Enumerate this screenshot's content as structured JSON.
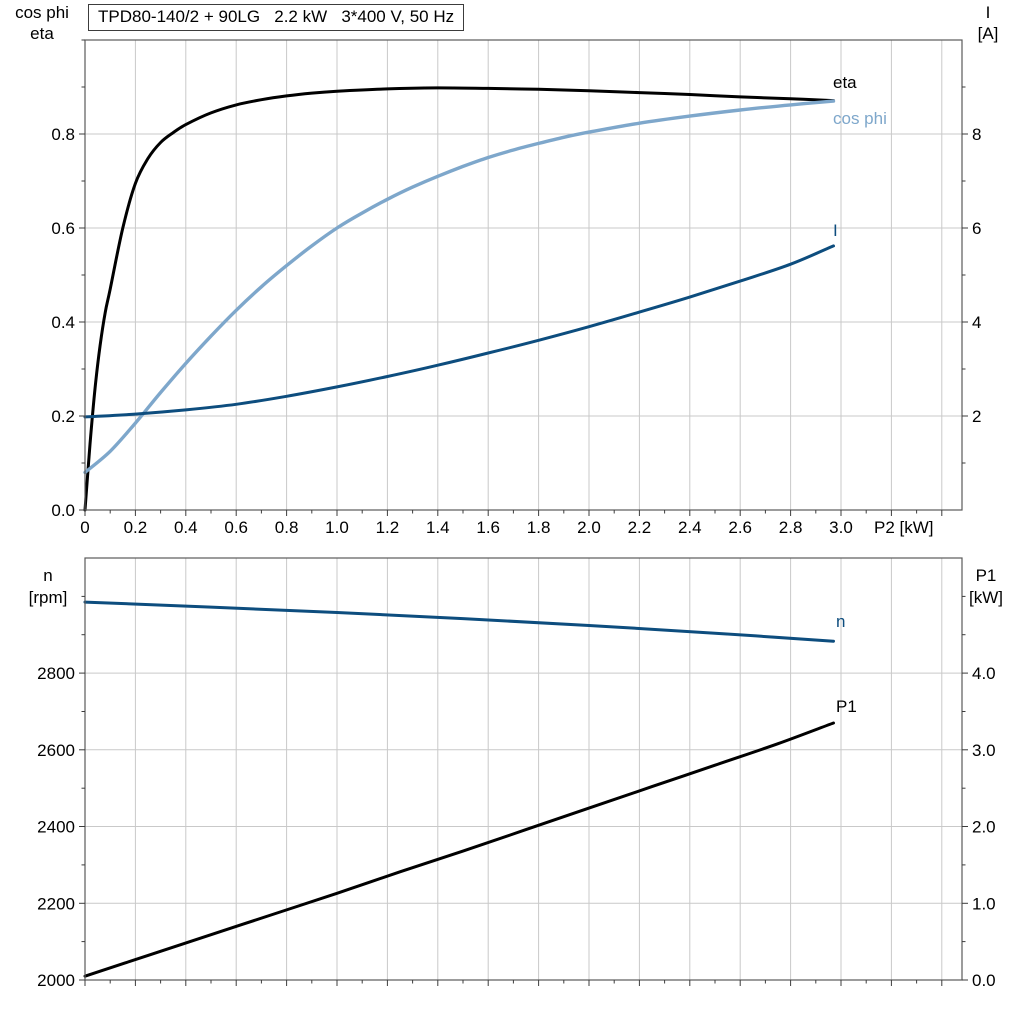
{
  "title_box": {
    "text": "TPD80-140/2 + 90LG   2.2 kW   3*400 V, 50 Hz"
  },
  "axis_captions": {
    "top_left_1": "cos phi",
    "top_left_2": "eta",
    "top_right_1": "I",
    "top_right_2": "[A]",
    "x_label": "P2 [kW]",
    "bottom_left_1": "n",
    "bottom_left_2": "[rpm]",
    "bottom_right_1": "P1",
    "bottom_right_2": "[kW]"
  },
  "colors": {
    "black": "#000000",
    "light_blue": "#7ea7cb",
    "dark_blue": "#0d4d7e",
    "grid": "#c9c9c9",
    "frame": "#5a5a5a",
    "tick": "#3c3c3c",
    "text": "#000000"
  },
  "chart_data": [
    {
      "type": "line",
      "panel": "top",
      "title": "TPD80-140/2 + 90LG   2.2 kW   3*400 V, 50 Hz",
      "xlabel": "P2 [kW]",
      "ylabel_left": "cos phi / eta",
      "ylabel_right": "I [A]",
      "grid": true,
      "xlim": [
        0,
        3.48
      ],
      "ylim_left": [
        0,
        1.0
      ],
      "ylim_right": [
        0,
        10
      ],
      "x_tick_values": [
        0,
        0.2,
        0.4,
        0.6,
        0.8,
        1.0,
        1.2,
        1.4,
        1.6,
        1.8,
        2.0,
        2.2,
        2.4,
        2.6,
        2.8,
        3.0
      ],
      "x_tick_labels": [
        "0",
        "0.2",
        "0.4",
        "0.6",
        "0.8",
        "1.0",
        "1.2",
        "1.4",
        "1.6",
        "1.8",
        "2.0",
        "2.2",
        "2.4",
        "2.6",
        "2.8",
        "3.0"
      ],
      "x_grid_values": [
        0.2,
        0.4,
        0.6,
        0.8,
        1.0,
        1.2,
        1.4,
        1.6,
        1.8,
        2.0,
        2.2,
        2.4,
        2.6,
        2.8,
        3.0,
        3.2,
        3.4
      ],
      "y_left_tick_values": [
        0,
        0.2,
        0.4,
        0.6,
        0.8
      ],
      "y_left_tick_labels": [
        "0.0",
        "0.2",
        "0.4",
        "0.6",
        "0.8"
      ],
      "y_right_tick_values": [
        2,
        4,
        6,
        8
      ],
      "y_right_tick_labels": [
        "2",
        "4",
        "6",
        "8"
      ],
      "y_grid_values": [
        0.2,
        0.4,
        0.6,
        0.8
      ],
      "minor_steps": {
        "x": 0.1,
        "left": 0.1,
        "right": 1
      },
      "series": [
        {
          "name": "eta",
          "axis": "left",
          "color_key": "black",
          "width": 3,
          "points": [
            [
              0,
              0
            ],
            [
              0.02,
              0.14
            ],
            [
              0.04,
              0.26
            ],
            [
              0.06,
              0.35
            ],
            [
              0.08,
              0.42
            ],
            [
              0.1,
              0.47
            ],
            [
              0.15,
              0.6
            ],
            [
              0.2,
              0.695
            ],
            [
              0.25,
              0.748
            ],
            [
              0.3,
              0.782
            ],
            [
              0.35,
              0.803
            ],
            [
              0.4,
              0.82
            ],
            [
              0.5,
              0.845
            ],
            [
              0.6,
              0.862
            ],
            [
              0.7,
              0.873
            ],
            [
              0.8,
              0.881
            ],
            [
              0.9,
              0.887
            ],
            [
              1.0,
              0.891
            ],
            [
              1.2,
              0.896
            ],
            [
              1.4,
              0.898
            ],
            [
              1.6,
              0.897
            ],
            [
              1.8,
              0.895
            ],
            [
              2.0,
              0.892
            ],
            [
              2.2,
              0.888
            ],
            [
              2.4,
              0.884
            ],
            [
              2.6,
              0.879
            ],
            [
              2.8,
              0.875
            ],
            [
              2.97,
              0.871
            ]
          ]
        },
        {
          "name": "cos phi",
          "axis": "left",
          "color_key": "light_blue",
          "width": 3.4,
          "points": [
            [
              0,
              0.08
            ],
            [
              0.1,
              0.125
            ],
            [
              0.2,
              0.185
            ],
            [
              0.3,
              0.25
            ],
            [
              0.4,
              0.312
            ],
            [
              0.5,
              0.37
            ],
            [
              0.6,
              0.425
            ],
            [
              0.7,
              0.475
            ],
            [
              0.8,
              0.52
            ],
            [
              0.9,
              0.562
            ],
            [
              1.0,
              0.6
            ],
            [
              1.1,
              0.632
            ],
            [
              1.2,
              0.661
            ],
            [
              1.3,
              0.687
            ],
            [
              1.4,
              0.71
            ],
            [
              1.5,
              0.731
            ],
            [
              1.6,
              0.75
            ],
            [
              1.7,
              0.766
            ],
            [
              1.8,
              0.78
            ],
            [
              1.9,
              0.793
            ],
            [
              2.0,
              0.804
            ],
            [
              2.2,
              0.823
            ],
            [
              2.4,
              0.838
            ],
            [
              2.6,
              0.851
            ],
            [
              2.8,
              0.862
            ],
            [
              2.97,
              0.87
            ]
          ]
        },
        {
          "name": "I",
          "axis": "right",
          "color_key": "dark_blue",
          "width": 3,
          "points": [
            [
              0,
              1.98
            ],
            [
              0.2,
              2.04
            ],
            [
              0.4,
              2.13
            ],
            [
              0.6,
              2.25
            ],
            [
              0.8,
              2.42
            ],
            [
              1.0,
              2.62
            ],
            [
              1.2,
              2.84
            ],
            [
              1.4,
              3.08
            ],
            [
              1.6,
              3.34
            ],
            [
              1.8,
              3.61
            ],
            [
              2.0,
              3.9
            ],
            [
              2.2,
              4.21
            ],
            [
              2.4,
              4.53
            ],
            [
              2.6,
              4.87
            ],
            [
              2.8,
              5.23
            ],
            [
              2.97,
              5.62
            ]
          ]
        }
      ]
    },
    {
      "type": "line",
      "panel": "bottom",
      "title": "",
      "xlabel": "",
      "ylabel_left": "n [rpm]",
      "ylabel_right": "P1 [kW]",
      "grid": true,
      "xlim": [
        0,
        3.48
      ],
      "ylim_left": [
        2000,
        3100
      ],
      "ylim_right": [
        0,
        5.5
      ],
      "x_tick_values": [],
      "x_tick_labels": [],
      "x_grid_values": [
        0.2,
        0.4,
        0.6,
        0.8,
        1.0,
        1.2,
        1.4,
        1.6,
        1.8,
        2.0,
        2.2,
        2.4,
        2.6,
        2.8,
        3.0,
        3.2,
        3.4
      ],
      "y_left_tick_values": [
        2000,
        2200,
        2400,
        2600,
        2800
      ],
      "y_left_tick_labels": [
        "2000",
        "2200",
        "2400",
        "2600",
        "2800"
      ],
      "y_right_tick_values": [
        0,
        1,
        2,
        3,
        4
      ],
      "y_right_tick_labels": [
        "0.0",
        "1.0",
        "2.0",
        "3.0",
        "4.0"
      ],
      "y_grid_values": [
        2200,
        2400,
        2600,
        2800
      ],
      "minor_steps": {
        "x": 0.1,
        "left": 100,
        "right": 0.5
      },
      "series": [
        {
          "name": "n",
          "axis": "left",
          "color_key": "dark_blue",
          "width": 3,
          "points": [
            [
              0,
              2985
            ],
            [
              0.5,
              2972
            ],
            [
              1.0,
              2958
            ],
            [
              1.5,
              2942
            ],
            [
              2.0,
              2924
            ],
            [
              2.5,
              2904
            ],
            [
              2.97,
              2883
            ]
          ]
        },
        {
          "name": "P1",
          "axis": "right",
          "color_key": "black",
          "width": 3,
          "points": [
            [
              0,
              0.05
            ],
            [
              0.25,
              0.32
            ],
            [
              0.5,
              0.59
            ],
            [
              0.75,
              0.86
            ],
            [
              1.0,
              1.13
            ],
            [
              1.25,
              1.41
            ],
            [
              1.5,
              1.68
            ],
            [
              1.75,
              1.96
            ],
            [
              2.0,
              2.24
            ],
            [
              2.25,
              2.52
            ],
            [
              2.5,
              2.8
            ],
            [
              2.75,
              3.08
            ],
            [
              2.97,
              3.35
            ]
          ]
        }
      ]
    }
  ]
}
